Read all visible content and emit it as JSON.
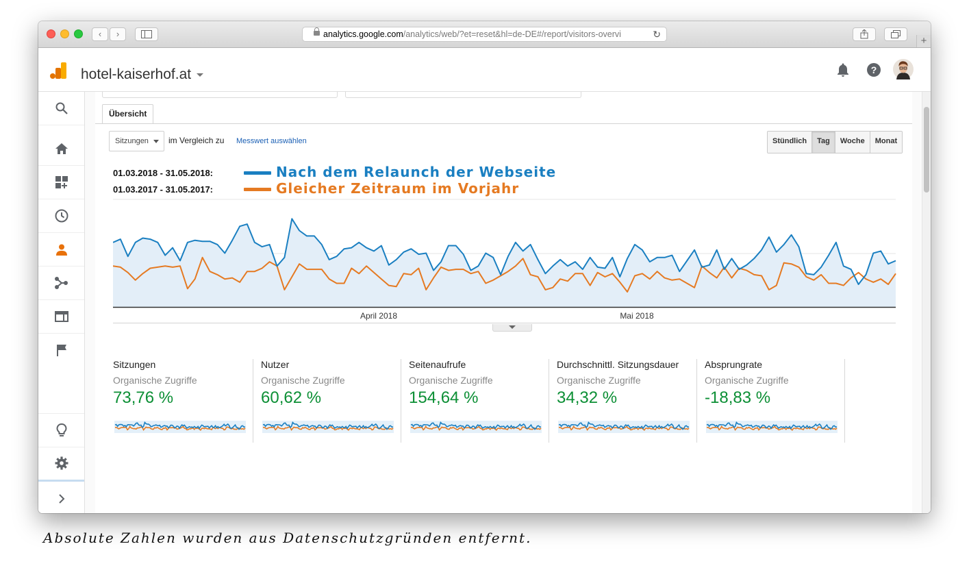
{
  "browser": {
    "url_host": "analytics.google.com",
    "url_path": "/analytics/web/?et=reset&hl=de-DE#/report/visitors-overvi",
    "plus_label": "+"
  },
  "header": {
    "property": "hotel-kaiserhof.at",
    "icons": [
      "bell-icon",
      "help-icon",
      "avatar"
    ]
  },
  "sidebar": {
    "items": [
      "search-icon",
      "home-icon",
      "dashboards-icon",
      "realtime-icon",
      "audience-icon",
      "acquisition-icon",
      "behavior-icon",
      "conversions-icon",
      "lightbulb-icon",
      "gear-icon",
      "chevron-right-icon"
    ],
    "active": "audience-icon"
  },
  "report": {
    "tab_label": "Übersicht",
    "metric_select": "Sitzungen",
    "compare_label": "im Vergleich zu",
    "metric_link": "Messwert auswählen",
    "granularity": [
      "Stündlich",
      "Tag",
      "Woche",
      "Monat"
    ],
    "granularity_active": "Tag"
  },
  "legend": [
    {
      "dates": "01.03.2018 - 31.05.2018:",
      "label": "Nach dem Relaunch der Webseite",
      "color": "#1a7fc1"
    },
    {
      "dates": "01.03.2017 - 31.05.2017:",
      "label": "Gleicher Zeitraum im Vorjahr",
      "color": "#e57a22"
    }
  ],
  "chart_data": {
    "type": "line",
    "x_labels": [
      "April 2018",
      "Mai 2018"
    ],
    "grid": true,
    "series": [
      {
        "color": "#1a7fc1",
        "fill": true,
        "values": [
          60,
          63,
          47,
          60,
          64,
          63,
          60,
          48,
          55,
          43,
          60,
          62,
          61,
          61,
          58,
          50,
          62,
          75,
          77,
          60,
          56,
          58,
          38,
          46,
          82,
          71,
          66,
          66,
          58,
          44,
          47,
          54,
          55,
          60,
          55,
          52,
          57,
          39,
          44,
          51,
          54,
          49,
          50,
          34,
          42,
          57,
          57,
          49,
          34,
          38,
          50,
          46,
          30,
          47,
          60,
          52,
          58,
          44,
          31,
          38,
          44,
          38,
          42,
          35,
          46,
          37,
          36,
          46,
          28,
          45,
          58,
          53,
          42,
          46,
          46,
          48,
          33,
          43,
          53,
          37,
          39,
          53,
          35,
          45,
          35,
          39,
          45,
          53,
          65,
          51,
          58,
          67,
          56,
          31,
          30,
          37,
          48,
          60,
          38,
          35,
          21,
          30,
          50,
          52,
          40,
          43
        ]
      },
      {
        "color": "#e57a22",
        "fill": false,
        "values": [
          38,
          37,
          32,
          25,
          31,
          36,
          37,
          38,
          37,
          38,
          17,
          26,
          46,
          33,
          30,
          26,
          27,
          23,
          33,
          33,
          36,
          42,
          38,
          16,
          28,
          40,
          35,
          35,
          35,
          26,
          22,
          22,
          36,
          31,
          38,
          32,
          26,
          20,
          19,
          31,
          30,
          36,
          16,
          27,
          37,
          34,
          35,
          35,
          31,
          33,
          22,
          25,
          29,
          33,
          38,
          45,
          30,
          28,
          16,
          18,
          26,
          24,
          31,
          31,
          20,
          32,
          28,
          31,
          23,
          14,
          29,
          31,
          26,
          33,
          27,
          25,
          26,
          22,
          18,
          38,
          32,
          27,
          37,
          27,
          36,
          34,
          30,
          29,
          16,
          20,
          41,
          40,
          37,
          28,
          25,
          30,
          22,
          22,
          20,
          27,
          32,
          26,
          23,
          26,
          21,
          31
        ]
      }
    ]
  },
  "tiles": [
    {
      "name": "Sitzungen",
      "sub": "Organische Zugriffe",
      "value": "73,76 %"
    },
    {
      "name": "Nutzer",
      "sub": "Organische Zugriffe",
      "value": "60,62 %"
    },
    {
      "name": "Seitenaufrufe",
      "sub": "Organische Zugriffe",
      "value": "154,64 %"
    },
    {
      "name": "Durchschnittl. Sitzungsdauer",
      "sub": "Organische Zugriffe",
      "value": "34,32 %"
    },
    {
      "name": "Absprungrate",
      "sub": "Organische Zugriffe",
      "value": "-18,83 %"
    }
  ],
  "caption": "Absolute Zahlen wurden aus Datenschutzgründen entfernt."
}
